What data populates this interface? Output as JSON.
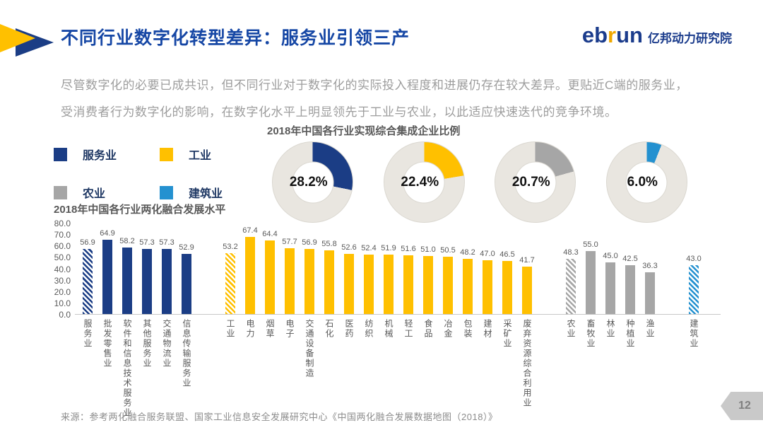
{
  "header": {
    "title": "不同行业数字化转型差异：服务业引领三产",
    "logo": {
      "en_part1": "eb",
      "en_part2": "r",
      "en_part3": "un",
      "cn": "亿邦动力研究院"
    }
  },
  "intro": {
    "line1": "尽管数字化的必要已成共识，但不同行业对于数字化的实际投入程度和进展仍存在较大差异。更贴近C端的服务业，",
    "line2": "受消费者行为数字化的影响，在数字化水平上明显领先于工业与农业，以此适应快速迭代的竞争环境。"
  },
  "colors": {
    "service_blue": "#1B3D85",
    "industry_yellow": "#FFC000",
    "agriculture_gray": "#A6A6A6",
    "construction_blue": "#2491D0",
    "donut_track": "#E9E6E0",
    "accent_title": "#1647A5"
  },
  "legend": {
    "items": [
      {
        "label": "服务业",
        "color": "#1B3D85"
      },
      {
        "label": "工业",
        "color": "#FFC000"
      },
      {
        "label": "农业",
        "color": "#A6A6A6"
      },
      {
        "label": "建筑业",
        "color": "#2491D0"
      }
    ]
  },
  "chart_data": [
    {
      "type": "pie",
      "style": "donut",
      "title": "2018年中国各行业实现综合集成企业比例",
      "track_color": "#E9E6E0",
      "items": [
        {
          "label": "服务业",
          "value": 28.2,
          "display": "28.2%",
          "color": "#1B3D85"
        },
        {
          "label": "工业",
          "value": 22.4,
          "display": "22.4%",
          "color": "#FFC000"
        },
        {
          "label": "农业",
          "value": 20.7,
          "display": "20.7%",
          "color": "#A6A6A6"
        },
        {
          "label": "建筑业",
          "value": 6.0,
          "display": "6.0%",
          "color": "#2491D0"
        }
      ]
    },
    {
      "type": "bar",
      "title": "2018年中国各行业两化融合发展水平",
      "ylim": [
        0,
        80
      ],
      "y_ticks": [
        "80.0",
        "70.0",
        "60.0",
        "50.0",
        "40.0",
        "30.0",
        "20.0",
        "10.0",
        "0.0"
      ],
      "grid": false,
      "groups": [
        {
          "name": "服务业",
          "color": "#1B3D85",
          "bars": [
            {
              "label": "服务业",
              "value": 56.9,
              "hatched": true
            },
            {
              "label": "批发零售业",
              "value": 64.9
            },
            {
              "label": "软件和信息技术服务业",
              "value": 58.2
            },
            {
              "label": "其他服务业",
              "value": 57.3
            },
            {
              "label": "交通物流业",
              "value": 57.3
            },
            {
              "label": "信息传输服务业",
              "value": 52.9
            }
          ]
        },
        {
          "name": "工业",
          "color": "#FFC000",
          "bars": [
            {
              "label": "工业",
              "value": 53.2,
              "hatched": true
            },
            {
              "label": "电力",
              "value": 67.4
            },
            {
              "label": "烟草",
              "value": 64.4
            },
            {
              "label": "电子",
              "value": 57.7
            },
            {
              "label": "交通设备制造",
              "value": 56.9
            },
            {
              "label": "石化",
              "value": 55.8
            },
            {
              "label": "医药",
              "value": 52.6
            },
            {
              "label": "纺织",
              "value": 52.4
            },
            {
              "label": "机械",
              "value": 51.9
            },
            {
              "label": "轻工",
              "value": 51.6
            },
            {
              "label": "食品",
              "value": 51.0
            },
            {
              "label": "冶金",
              "value": 50.5
            },
            {
              "label": "包装",
              "value": 48.2
            },
            {
              "label": "建材",
              "value": 47.0
            },
            {
              "label": "采矿业",
              "value": 46.5
            },
            {
              "label": "废弃资源综合利用业",
              "value": 41.7
            }
          ]
        },
        {
          "name": "农业",
          "color": "#A6A6A6",
          "bars": [
            {
              "label": "农业",
              "value": 48.3,
              "hatched": true
            },
            {
              "label": "畜牧业",
              "value": 55.0
            },
            {
              "label": "林业",
              "value": 45.0
            },
            {
              "label": "种植业",
              "value": 42.5
            },
            {
              "label": "渔业",
              "value": 36.3
            }
          ]
        },
        {
          "name": "建筑业",
          "color": "#2491D0",
          "bars": [
            {
              "label": "建筑业",
              "value": 43.0,
              "hatched": true
            }
          ]
        }
      ]
    }
  ],
  "footer": {
    "source": "来源：参考两化融合服务联盟、国家工业信息安全发展研究中心《中国两化融合发展数据地图（2018）》",
    "page": "12"
  }
}
